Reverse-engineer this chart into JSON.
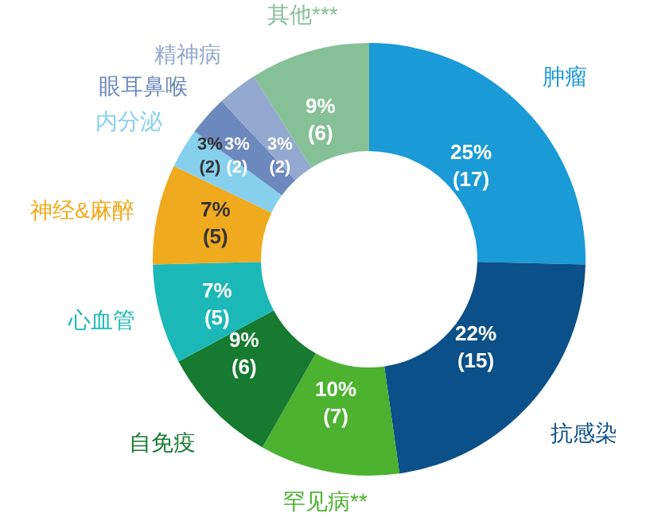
{
  "chart_data": {
    "type": "donut",
    "categories": [
      "肿瘤",
      "抗感染",
      "罕见病**",
      "自免疫",
      "心血管",
      "神经&麻醉",
      "内分泌",
      "眼耳鼻喉",
      "精神病",
      "其他***"
    ],
    "values": [
      17,
      15,
      7,
      6,
      5,
      5,
      2,
      2,
      2,
      6
    ],
    "colors": [
      "#1a9ad6",
      "#0b5088",
      "#4cb230",
      "#167a30",
      "#1cb8b8",
      "#f0aa1e",
      "#86d0ee",
      "#6d88bd",
      "#94a9cf",
      "#86c096"
    ],
    "value_labels": [
      "25%\n(17)",
      "22%\n(15)",
      "10%\n(7)",
      "9%\n(6)",
      "7%\n(5)",
      "7%\n(5)",
      "3%\n(2)",
      "3%\n(2)",
      "3%\n(2)",
      "9%\n(6)"
    ]
  }
}
